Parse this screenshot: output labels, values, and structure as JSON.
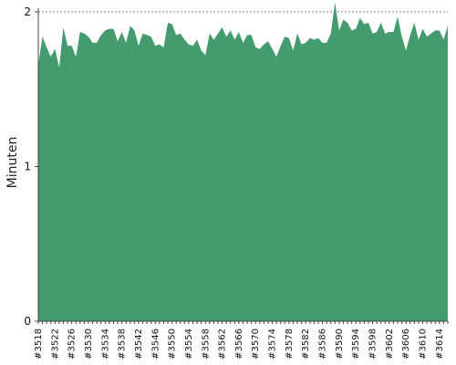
{
  "chart_data": {
    "type": "area",
    "title": "",
    "xlabel": "",
    "ylabel": "Minuten",
    "ylim": [
      0,
      2
    ],
    "yticks": [
      0,
      1,
      2
    ],
    "grid": "horizontal-dashed",
    "color": "#449c6e",
    "x": [
      "#3518",
      "#3519",
      "#3520",
      "#3521",
      "#3522",
      "#3523",
      "#3524",
      "#3525",
      "#3526",
      "#3527",
      "#3528",
      "#3529",
      "#3530",
      "#3531",
      "#3532",
      "#3533",
      "#3534",
      "#3535",
      "#3536",
      "#3537",
      "#3538",
      "#3539",
      "#3540",
      "#3541",
      "#3542",
      "#3543",
      "#3544",
      "#3545",
      "#3546",
      "#3547",
      "#3548",
      "#3549",
      "#3550",
      "#3551",
      "#3552",
      "#3553",
      "#3554",
      "#3555",
      "#3556",
      "#3557",
      "#3558",
      "#3559",
      "#3560",
      "#3561",
      "#3562",
      "#3563",
      "#3564",
      "#3565",
      "#3566",
      "#3567",
      "#3568",
      "#3569",
      "#3570",
      "#3571",
      "#3572",
      "#3573",
      "#3574",
      "#3575",
      "#3576",
      "#3577",
      "#3578",
      "#3579",
      "#3580",
      "#3581",
      "#3582",
      "#3583",
      "#3584",
      "#3585",
      "#3586",
      "#3587",
      "#3588",
      "#3589",
      "#3590",
      "#3591",
      "#3592",
      "#3593",
      "#3594",
      "#3595",
      "#3596",
      "#3597",
      "#3598",
      "#3599",
      "#3600",
      "#3601",
      "#3602",
      "#3603",
      "#3604",
      "#3605",
      "#3606",
      "#3607",
      "#3608",
      "#3609",
      "#3610",
      "#3611",
      "#3612",
      "#3613",
      "#3614",
      "#3615",
      "#3616"
    ],
    "xtick_labels": [
      "#3518",
      "#3522",
      "#3526",
      "#3530",
      "#3534",
      "#3538",
      "#3542",
      "#3546",
      "#3550",
      "#3554",
      "#3558",
      "#3562",
      "#3566",
      "#3570",
      "#3574",
      "#3578",
      "#3582",
      "#3586",
      "#3590",
      "#3594",
      "#3598",
      "#3602",
      "#3606",
      "#3610",
      "#3614"
    ],
    "values": [
      1.66,
      1.84,
      1.77,
      1.71,
      1.76,
      1.64,
      1.9,
      1.78,
      1.78,
      1.71,
      1.87,
      1.86,
      1.84,
      1.8,
      1.8,
      1.85,
      1.88,
      1.89,
      1.89,
      1.81,
      1.87,
      1.8,
      1.91,
      1.88,
      1.78,
      1.86,
      1.85,
      1.84,
      1.78,
      1.79,
      1.77,
      1.93,
      1.92,
      1.85,
      1.86,
      1.82,
      1.79,
      1.78,
      1.82,
      1.75,
      1.72,
      1.86,
      1.82,
      1.86,
      1.9,
      1.84,
      1.88,
      1.82,
      1.87,
      1.8,
      1.85,
      1.85,
      1.77,
      1.76,
      1.79,
      1.81,
      1.76,
      1.71,
      1.78,
      1.84,
      1.83,
      1.75,
      1.86,
      1.79,
      1.8,
      1.83,
      1.82,
      1.83,
      1.8,
      1.8,
      1.86,
      2.06,
      1.88,
      1.95,
      1.93,
      1.88,
      1.89,
      1.96,
      1.92,
      1.93,
      1.86,
      1.87,
      1.93,
      1.86,
      1.87,
      1.87,
      1.97,
      1.84,
      1.75,
      1.85,
      1.93,
      1.82,
      1.89,
      1.84,
      1.86,
      1.88,
      1.88,
      1.82,
      1.91
    ]
  }
}
